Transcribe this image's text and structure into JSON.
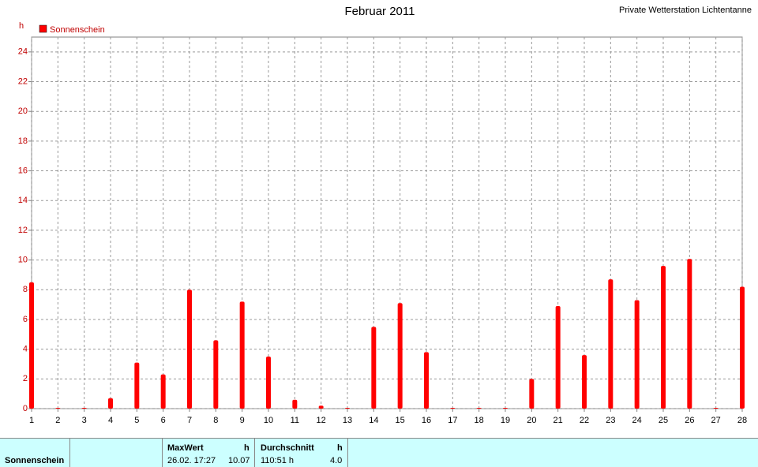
{
  "chart_data": {
    "type": "bar",
    "title": "Februar 2011",
    "subtitle": "Private Wetterstation Lichtentanne",
    "y_label": "h",
    "x": [
      1,
      2,
      3,
      4,
      5,
      6,
      7,
      8,
      9,
      10,
      11,
      12,
      13,
      14,
      15,
      16,
      17,
      18,
      19,
      20,
      21,
      22,
      23,
      24,
      25,
      26,
      27,
      28
    ],
    "series": [
      {
        "name": "Sonnenschein",
        "color": "#ff0000",
        "values": [
          8.5,
          0.05,
          0.05,
          0.7,
          3.1,
          2.3,
          8.0,
          4.6,
          7.2,
          3.5,
          0.6,
          0.2,
          0.05,
          5.5,
          7.1,
          3.8,
          0.05,
          0.05,
          0.05,
          2.0,
          6.9,
          3.6,
          8.7,
          7.3,
          9.6,
          10.07,
          0.05,
          8.2
        ]
      }
    ],
    "xlim": [
      1,
      28
    ],
    "xticks": [
      1,
      2,
      3,
      4,
      5,
      6,
      7,
      8,
      9,
      10,
      11,
      12,
      13,
      14,
      15,
      16,
      17,
      18,
      19,
      20,
      21,
      22,
      23,
      24,
      25,
      26,
      27,
      28
    ],
    "ylim": [
      0,
      25
    ],
    "yticks": [
      0,
      2,
      4,
      6,
      8,
      10,
      12,
      14,
      16,
      18,
      20,
      22,
      24
    ],
    "grid": true,
    "legend": "top-left"
  },
  "table": {
    "row_label": "Sonnenschein",
    "max": {
      "header": "MaxWert",
      "unit": "h",
      "time": "26.02. 17:27",
      "value": "10.07"
    },
    "avg": {
      "header": "Durchschnitt",
      "unit": "h",
      "total": "110:51 h",
      "value": "4.0"
    }
  }
}
